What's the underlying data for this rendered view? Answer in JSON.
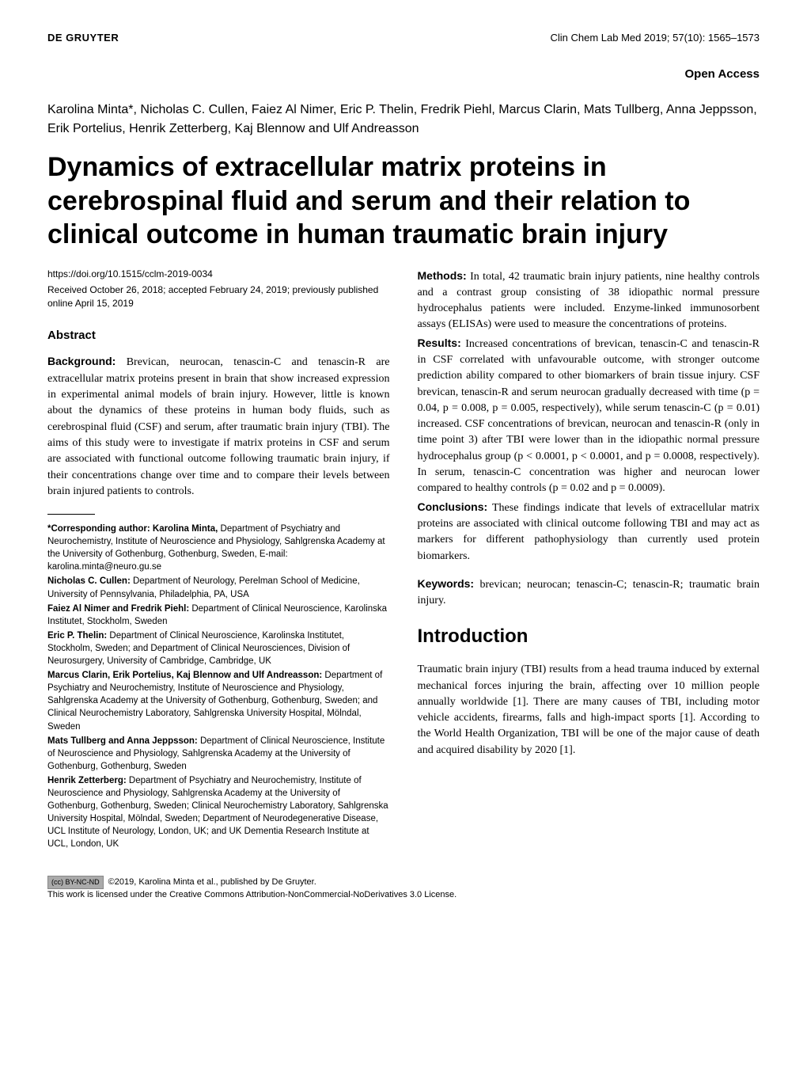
{
  "header": {
    "publisher": "DE GRUYTER",
    "citation": "Clin Chem Lab Med 2019; 57(10): 1565–1573"
  },
  "open_access": "Open Access",
  "authors": "Karolina Minta*, Nicholas C. Cullen, Faiez Al Nimer, Eric P. Thelin, Fredrik Piehl, Marcus Clarin, Mats Tullberg, Anna Jeppsson, Erik Portelius, Henrik Zetterberg, Kaj Blennow and Ulf Andreasson",
  "title": "Dynamics of extracellular matrix proteins in cerebrospinal fluid and serum and their relation to clinical outcome in human traumatic brain injury",
  "doi": "https://doi.org/10.1515/cclm-2019-0034",
  "dates": "Received October 26, 2018; accepted February 24, 2019; previously published online April 15, 2019",
  "abstract": {
    "heading": "Abstract",
    "background_label": "Background:",
    "background": " Brevican, neurocan, tenascin-C and tenascin-R are extracellular matrix proteins present in brain that show increased expression in experimental animal models of brain injury. However, little is known about the dynamics of these proteins in human body fluids, such as cerebrospinal fluid (CSF) and serum, after traumatic brain injury (TBI). The aims of this study were to investigate if matrix proteins in CSF and serum are associated with functional outcome following traumatic brain injury, if their concentrations change over time and to compare their levels between brain injured patients to controls.",
    "methods_label": "Methods:",
    "methods": " In total, 42 traumatic brain injury patients, nine healthy controls and a contrast group consisting of 38 idiopathic normal pressure hydrocephalus patients were included. Enzyme-linked immunosorbent assays (ELISAs) were used to measure the concentrations of proteins.",
    "results_label": "Results:",
    "results": " Increased concentrations of brevican, tenascin-C and tenascin-R in CSF correlated with unfavourable outcome, with stronger outcome prediction ability compared to other biomarkers of brain tissue injury. CSF brevican, tenascin-R and serum neurocan gradually decreased with time (p = 0.04, p = 0.008, p = 0.005, respectively), while serum tenascin-C (p = 0.01) increased. CSF concentrations of brevican, neurocan and tenascin-R (only in time point 3) after TBI were lower than in the idiopathic normal pressure hydrocephalus group (p < 0.0001, p < 0.0001, and p = 0.0008, respectively). In serum, tenascin-C concentration was higher and neurocan lower compared to healthy controls (p = 0.02 and p = 0.0009).",
    "conclusions_label": "Conclusions:",
    "conclusions": " These findings indicate that levels of extracellular matrix proteins are associated with clinical outcome following TBI and may act as markers for different pathophysiology than currently used protein biomarkers."
  },
  "keywords": {
    "label": "Keywords:",
    "text": " brevican; neurocan; tenascin-C; tenascin-R; traumatic brain injury."
  },
  "introduction": {
    "heading": "Introduction",
    "text": "Traumatic brain injury (TBI) results from a head trauma induced by external mechanical forces injuring the brain, affecting over 10 million people annually worldwide [1]. There are many causes of TBI, including motor vehicle accidents, firearms, falls and high-impact sports [1]. According to the World Health Organization, TBI will be one of the major cause of death and acquired disability by 2020 [1]."
  },
  "affiliations": [
    {
      "name": "*Corresponding author: Karolina Minta,",
      "text": " Department of Psychiatry and Neurochemistry, Institute of Neuroscience and Physiology, Sahlgrenska Academy at the University of Gothenburg, Gothenburg, Sweden, E-mail: karolina.minta@neuro.gu.se"
    },
    {
      "name": "Nicholas C. Cullen:",
      "text": " Department of Neurology, Perelman School of Medicine, University of Pennsylvania, Philadelphia, PA, USA"
    },
    {
      "name": "Faiez Al Nimer and Fredrik Piehl:",
      "text": " Department of Clinical Neuroscience, Karolinska Institutet, Stockholm, Sweden"
    },
    {
      "name": "Eric P. Thelin:",
      "text": " Department of Clinical Neuroscience, Karolinska Institutet, Stockholm, Sweden; and Department of Clinical Neurosciences, Division of Neurosurgery, University of Cambridge, Cambridge, UK"
    },
    {
      "name": "Marcus Clarin, Erik Portelius, Kaj Blennow and Ulf Andreasson:",
      "text": " Department of Psychiatry and Neurochemistry, Institute of Neuroscience and Physiology, Sahlgrenska Academy at the University of Gothenburg, Gothenburg, Sweden; and Clinical Neurochemistry Laboratory, Sahlgrenska University Hospital, Mölndal, Sweden"
    },
    {
      "name": "Mats Tullberg and Anna Jeppsson:",
      "text": " Department of Clinical Neuroscience, Institute of Neuroscience and Physiology, Sahlgrenska Academy at the University of Gothenburg, Gothenburg, Sweden"
    },
    {
      "name": "Henrik Zetterberg:",
      "text": " Department of Psychiatry and Neurochemistry, Institute of Neuroscience and Physiology, Sahlgrenska Academy at the University of Gothenburg, Gothenburg, Sweden; Clinical Neurochemistry Laboratory, Sahlgrenska University Hospital, Mölndal, Sweden; Department of Neurodegenerative Disease, UCL Institute of Neurology, London, UK; and UK Dementia Research Institute at UCL, London, UK"
    }
  ],
  "footer": {
    "cc_badge": "(cc) BY-NC-ND",
    "copyright": "©2019, Karolina Minta et al., published by De Gruyter.",
    "license": "This work is licensed under the Creative Commons Attribution-NonCommercial-NoDerivatives 3.0 License."
  }
}
